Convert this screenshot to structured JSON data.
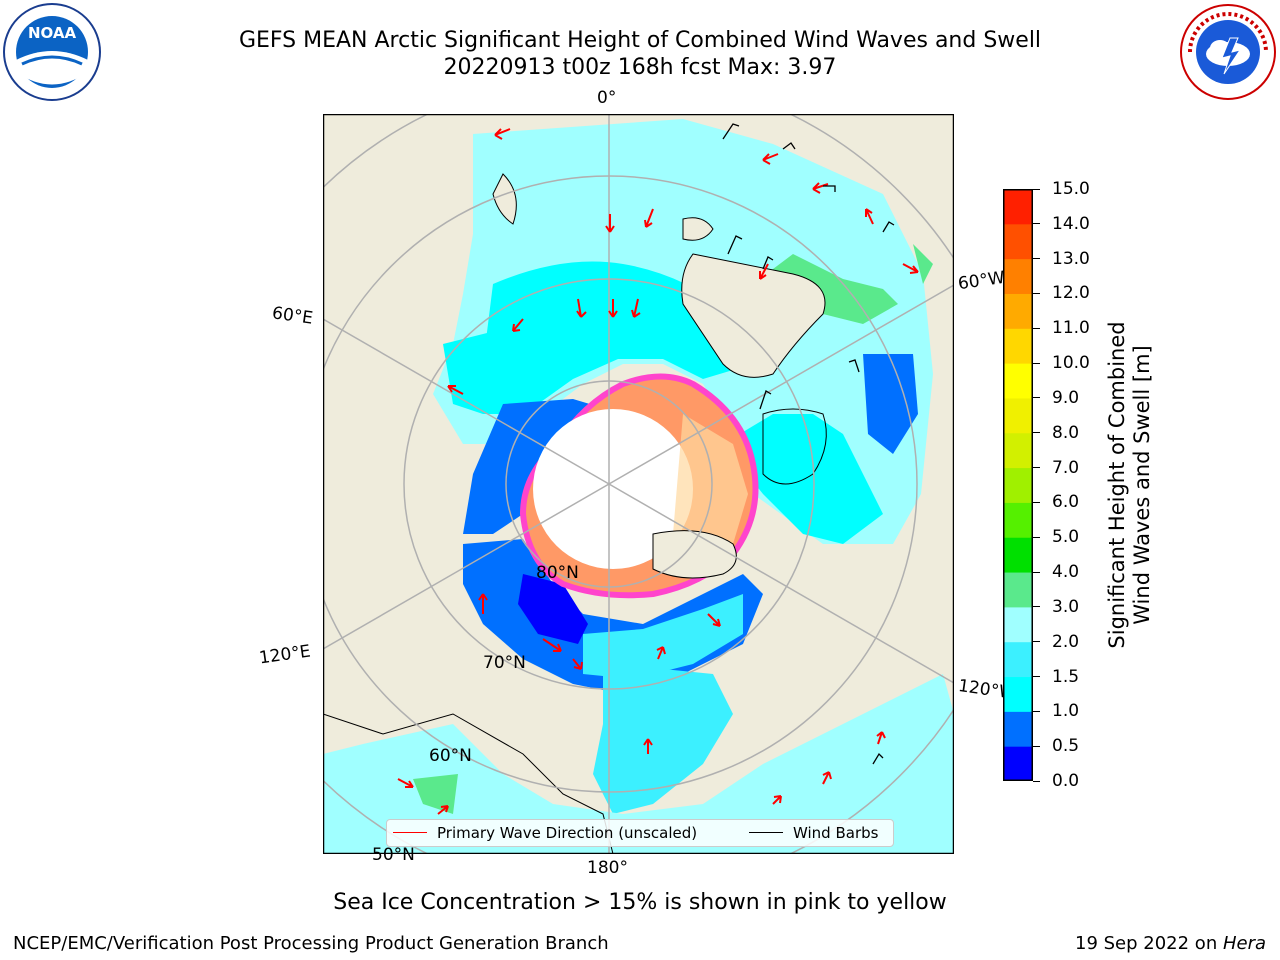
{
  "header": {
    "title_line1": "GEFS MEAN Arctic Significant Height of Combined Wind Waves and Swell",
    "title_line2": "20220913 t00z 168h fcst   Max: 3.97"
  },
  "logos": {
    "left_icon": "noaa-logo",
    "left_text": "NOAA",
    "left_ring_text": "NATIONAL OCEANIC AND ATMOSPHERIC ADMINISTRATION · U.S. DEPARTMENT OF COMMERCE",
    "right_icon": "nws-logo",
    "right_ring_text": "NATIONAL WEATHER SERVICE"
  },
  "map": {
    "projection": "north-polar-stereographic",
    "longitude_labels": {
      "lon_0": "0°",
      "lon_60e": "60°E",
      "lon_60w": "60°W",
      "lon_120e": "120°E",
      "lon_120w": "120°W",
      "lon_180": "180°"
    },
    "latitude_labels": {
      "lat_80": "80°N",
      "lat_70": "70°N",
      "lat_60": "60°N",
      "lat_50": "50°N"
    },
    "colors": {
      "land": "#efecdc",
      "grid": "#b0b0b0",
      "coast": "#000000",
      "ice_edge": "#ff44cc",
      "ice_fill": "#ffa060",
      "arrow": "#ff0000"
    }
  },
  "legend": {
    "primary_wave_direction": "Primary Wave Direction (unscaled)",
    "wind_barbs": "Wind Barbs",
    "primary_color": "#ff0000",
    "barb_color": "#000000"
  },
  "colorbar": {
    "label_line1": "Significant Height of Combined",
    "label_line2": "Wind Waves and Swell [m]",
    "ticks": [
      "0.0",
      "0.5",
      "1.0",
      "1.5",
      "2.0",
      "3.0",
      "4.0",
      "5.0",
      "6.0",
      "7.0",
      "8.0",
      "9.0",
      "10.0",
      "11.0",
      "12.0",
      "13.0",
      "14.0",
      "15.0"
    ],
    "colors": [
      "#0000ff",
      "#0070ff",
      "#00ffff",
      "#3cf0ff",
      "#a0ffff",
      "#5ae98c",
      "#00e000",
      "#55f000",
      "#a0f000",
      "#d2f000",
      "#f0f000",
      "#ffff00",
      "#ffd700",
      "#ffaa00",
      "#ff8000",
      "#ff5000",
      "#ff2000"
    ]
  },
  "chart_data": {
    "type": "heatmap",
    "title": "GEFS MEAN Arctic Significant Height of Combined Wind Waves and Swell",
    "max_value": 3.97,
    "units": "m",
    "scale_min": 0.0,
    "scale_max": 15.0,
    "forecast_run": "20220913 t00z",
    "forecast_hour": "168h"
  },
  "caption": "Sea Ice Concentration > 15% is shown in pink to yellow",
  "footer": {
    "left": "NCEP/EMC/Verification Post Processing Product Generation Branch",
    "right_date": "19 Sep 2022 on ",
    "right_host": "Hera"
  }
}
